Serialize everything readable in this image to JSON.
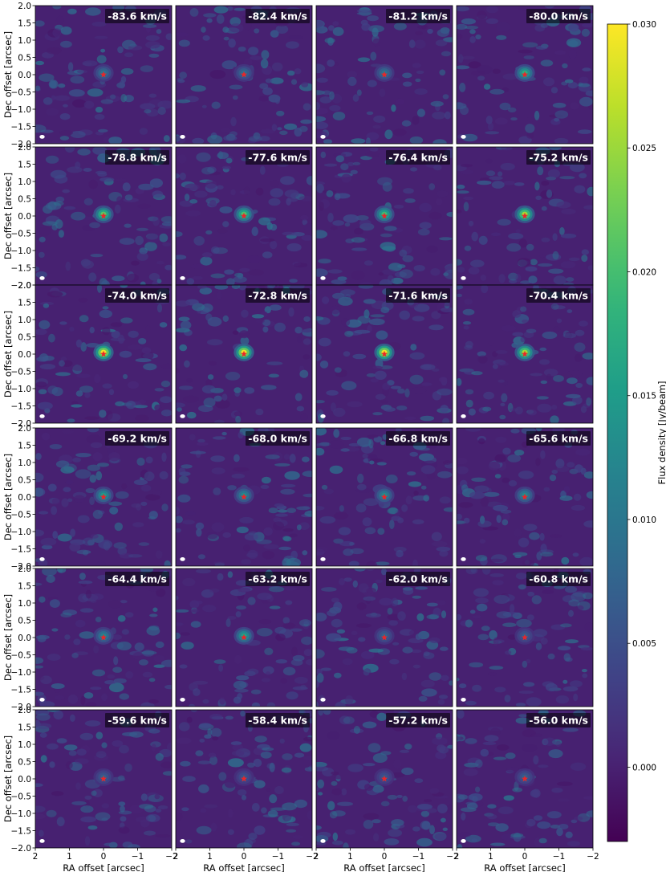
{
  "chart_data": {
    "type": "heatmap",
    "layout": {
      "rows": 6,
      "cols": 4
    },
    "channels": [
      {
        "velocity": "-83.6 km/s",
        "peak": 0.01
      },
      {
        "velocity": "-82.4 km/s",
        "peak": 0.009
      },
      {
        "velocity": "-81.2 km/s",
        "peak": 0.01
      },
      {
        "velocity": "-80.0 km/s",
        "peak": 0.018
      },
      {
        "velocity": "-78.8 km/s",
        "peak": 0.022
      },
      {
        "velocity": "-77.6 km/s",
        "peak": 0.021
      },
      {
        "velocity": "-76.4 km/s",
        "peak": 0.02
      },
      {
        "velocity": "-75.2 km/s",
        "peak": 0.026
      },
      {
        "velocity": "-74.0 km/s",
        "peak": 0.03
      },
      {
        "velocity": "-72.8 km/s",
        "peak": 0.03
      },
      {
        "velocity": "-71.6 km/s",
        "peak": 0.03
      },
      {
        "velocity": "-70.4 km/s",
        "peak": 0.026
      },
      {
        "velocity": "-69.2 km/s",
        "peak": 0.015
      },
      {
        "velocity": "-68.0 km/s",
        "peak": 0.013
      },
      {
        "velocity": "-66.8 km/s",
        "peak": 0.013
      },
      {
        "velocity": "-65.6 km/s",
        "peak": 0.013
      },
      {
        "velocity": "-64.4 km/s",
        "peak": 0.012
      },
      {
        "velocity": "-63.2 km/s",
        "peak": 0.016
      },
      {
        "velocity": "-62.0 km/s",
        "peak": 0.008
      },
      {
        "velocity": "-60.8 km/s",
        "peak": 0.007
      },
      {
        "velocity": "-59.6 km/s",
        "peak": 0.007
      },
      {
        "velocity": "-58.4 km/s",
        "peak": 0.006
      },
      {
        "velocity": "-57.2 km/s",
        "peak": 0.006
      },
      {
        "velocity": "-56.0 km/s",
        "peak": 0.007
      }
    ],
    "xlabel": "RA offset [arcsec]",
    "ylabel": "Dec offset [arcsec]",
    "xlim": [
      2,
      -2
    ],
    "ylim": [
      -2,
      2
    ],
    "x_ticks": [
      2,
      1,
      0,
      -1,
      -2
    ],
    "x_tick_labels": [
      "2",
      "1",
      "0",
      "−1",
      "−2"
    ],
    "y_ticks": [
      2.0,
      1.5,
      1.0,
      0.5,
      0.0,
      -0.5,
      -1.0,
      -1.5,
      -2.0
    ],
    "y_tick_labels": [
      "2.0",
      "1.5",
      "1.0",
      "0.5",
      "0.0",
      "−0.5",
      "−1.0",
      "−1.5",
      "−2.0"
    ],
    "colorbar": {
      "label": "Flux density [Jy/beam]",
      "min": -0.003,
      "max": 0.03,
      "ticks": [
        0.0,
        0.005,
        0.01,
        0.015,
        0.02,
        0.025,
        0.03
      ],
      "tick_labels": [
        "0.000",
        "0.005",
        "0.010",
        "0.015",
        "0.020",
        "0.025",
        "0.030"
      ],
      "colormap": "viridis"
    },
    "marker": {
      "x": 0,
      "y": 0,
      "symbol": "star",
      "color": "#e8262a"
    },
    "beam_color": "#ffffff",
    "grid": false
  }
}
